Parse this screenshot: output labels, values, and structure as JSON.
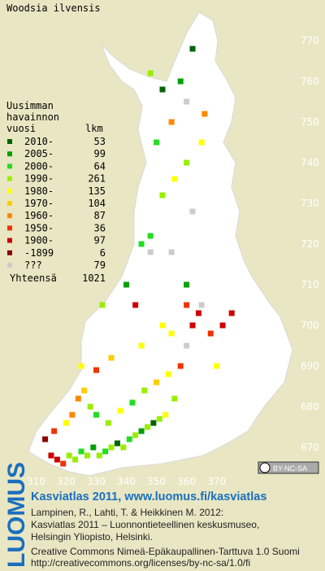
{
  "title": "Woodsia ilvensis",
  "legend": {
    "heading": [
      "Uusimman",
      "havainnon"
    ],
    "period_header": "vuosi",
    "count_header": "lkm",
    "entries": [
      {
        "label": "2010-",
        "count": 53,
        "color": "#006400"
      },
      {
        "label": "2005-",
        "count": 99,
        "color": "#00a000"
      },
      {
        "label": "2000-",
        "count": 64,
        "color": "#22dd22"
      },
      {
        "label": "1990-",
        "count": 261,
        "color": "#99ee00"
      },
      {
        "label": "1980-",
        "count": 135,
        "color": "#ffff00"
      },
      {
        "label": "1970-",
        "count": 104,
        "color": "#ffcc00"
      },
      {
        "label": "1960-",
        "count": 87,
        "color": "#ff8800"
      },
      {
        "label": "1950-",
        "count": 36,
        "color": "#ee3300"
      },
      {
        "label": "1900-",
        "count": 97,
        "color": "#cc0000"
      },
      {
        "label": "-1899",
        "count": 6,
        "color": "#880000"
      },
      {
        "label": "???",
        "count": 79,
        "color": "#cccccc"
      }
    ],
    "total_label": "Yhteensä",
    "total": 1021
  },
  "map": {
    "xlim": [
      298,
      406
    ],
    "ylim": [
      660,
      780
    ],
    "xticks": [
      310,
      320,
      330,
      340,
      350,
      360,
      370
    ],
    "yticks": [
      670,
      680,
      690,
      700,
      710,
      720,
      730,
      740,
      750,
      760,
      770
    ],
    "cells": [
      [
        315,
        668,
        8
      ],
      [
        317,
        667,
        8
      ],
      [
        319,
        666,
        7
      ],
      [
        321,
        668,
        3
      ],
      [
        323,
        667,
        3
      ],
      [
        325,
        669,
        2
      ],
      [
        327,
        668,
        3
      ],
      [
        329,
        670,
        1
      ],
      [
        331,
        668,
        3
      ],
      [
        333,
        669,
        2
      ],
      [
        335,
        670,
        3
      ],
      [
        337,
        671,
        0
      ],
      [
        339,
        670,
        3
      ],
      [
        341,
        672,
        2
      ],
      [
        343,
        673,
        3
      ],
      [
        345,
        674,
        1
      ],
      [
        347,
        675,
        3
      ],
      [
        349,
        676,
        0
      ],
      [
        351,
        677,
        3
      ],
      [
        353,
        678,
        4
      ],
      [
        313,
        672,
        9
      ],
      [
        316,
        674,
        7
      ],
      [
        320,
        676,
        4
      ],
      [
        322,
        678,
        6
      ],
      [
        324,
        682,
        6
      ],
      [
        326,
        684,
        5
      ],
      [
        328,
        680,
        3
      ],
      [
        330,
        678,
        2
      ],
      [
        334,
        676,
        3
      ],
      [
        338,
        679,
        4
      ],
      [
        342,
        681,
        2
      ],
      [
        346,
        684,
        3
      ],
      [
        350,
        686,
        5
      ],
      [
        354,
        688,
        4
      ],
      [
        356,
        682,
        3
      ],
      [
        358,
        690,
        7
      ],
      [
        360,
        695,
        10
      ],
      [
        362,
        700,
        8
      ],
      [
        364,
        703,
        8
      ],
      [
        360,
        705,
        7
      ],
      [
        355,
        698,
        4
      ],
      [
        345,
        695,
        4
      ],
      [
        335,
        692,
        5
      ],
      [
        330,
        689,
        7
      ],
      [
        325,
        690,
        4
      ],
      [
        332,
        705,
        3
      ],
      [
        348,
        722,
        2
      ],
      [
        340,
        710,
        1
      ],
      [
        352,
        732,
        3
      ],
      [
        356,
        736,
        4
      ],
      [
        362,
        728,
        10
      ],
      [
        348,
        718,
        10
      ],
      [
        352,
        700,
        4
      ],
      [
        343,
        705,
        8
      ],
      [
        350,
        745,
        2
      ],
      [
        355,
        750,
        6
      ],
      [
        360,
        755,
        10
      ],
      [
        358,
        760,
        1
      ],
      [
        362,
        768,
        0
      ],
      [
        348,
        762,
        3
      ],
      [
        352,
        758,
        0
      ],
      [
        360,
        740,
        3
      ],
      [
        365,
        745,
        4
      ],
      [
        366,
        752,
        6
      ],
      [
        345,
        720,
        2
      ],
      [
        355,
        718,
        10
      ],
      [
        360,
        710,
        1
      ],
      [
        372,
        700,
        8
      ],
      [
        375,
        703,
        8
      ],
      [
        368,
        698,
        7
      ],
      [
        370,
        690,
        4
      ],
      [
        365,
        705,
        10
      ]
    ]
  },
  "license_badge": "BY-NC-SA",
  "footer": {
    "brand": "LUOMUS",
    "headline": "Kasviatlas 2011, www.luomus.fi/kasviatlas",
    "citation": [
      "Lampinen, R., Lahti, T. & Heikkinen M. 2012:",
      "Kasviatlas 2011 – Luonnontieteellinen keskusmuseo,",
      "Helsingin Yliopisto, Helsinki."
    ],
    "license": [
      "Creative Commons Nimeä-Epäkaupallinen-Tarttuva 1.0 Suomi",
      "http://creativecommons.org/licenses/by-nc-sa/1.0/fi"
    ]
  }
}
